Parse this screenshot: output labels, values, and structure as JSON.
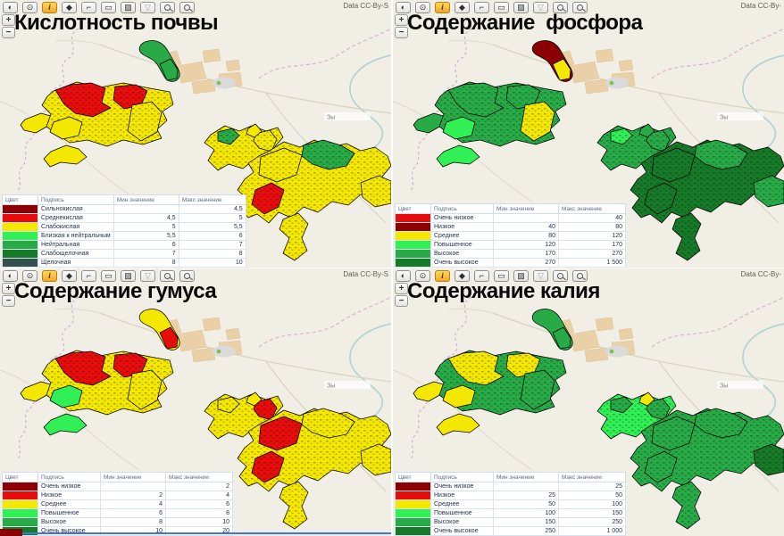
{
  "palette": {
    "yellow": "#f5e800",
    "red": "#e80d0d",
    "dark_red": "#8b0003",
    "bright_green": "#30f056",
    "green": "#28ab47",
    "dark_green": "#167a28",
    "slate_green": "#33514e"
  },
  "shared": {
    "zoom_in_label": "+",
    "zoom_out_label": "−",
    "map_label": "Зы",
    "legend_columns": [
      "Цвет",
      "Подпись",
      "Мин значение",
      "Макс значение"
    ],
    "toolbar": [
      {
        "name": "overview-globe-icon",
        "glyph": "◐"
      },
      {
        "name": "locate-icon",
        "glyph": "⊙"
      },
      {
        "name": "info-icon",
        "glyph": "i",
        "active": true
      },
      {
        "name": "swipe-compare-icon",
        "glyph": "◆"
      },
      {
        "name": "measure-length-icon",
        "glyph": "⌐"
      },
      {
        "name": "measure-area-icon",
        "glyph": "▭"
      },
      {
        "name": "annotate-icon",
        "glyph": "▨"
      },
      {
        "name": "filter-icon",
        "glyph": "▽",
        "muted": true
      },
      {
        "name": "zoom-previous-icon",
        "kind": "mag"
      },
      {
        "name": "zoom-next-icon",
        "kind": "mag"
      }
    ]
  },
  "panels": [
    {
      "title": "Кислотность почвы",
      "attribution": "Data CC-By-S",
      "legend_rows": [
        {
          "color": "dark_red",
          "label": "Сильнокислая",
          "min": "",
          "max": "4,5"
        },
        {
          "color": "red",
          "label": "Среднекислая",
          "min": "4,5",
          "max": "5"
        },
        {
          "color": "yellow",
          "label": "Слабокислая",
          "min": "5",
          "max": "5,5"
        },
        {
          "color": "bright_green",
          "label": "Близкая к нейтральным",
          "min": "5,5",
          "max": "6"
        },
        {
          "color": "green",
          "label": "Нейтральная",
          "min": "6",
          "max": "7"
        },
        {
          "color": "dark_green",
          "label": "Слабощелочная",
          "min": "7",
          "max": "8"
        },
        {
          "color": "slate_green",
          "label": "Щелочная",
          "min": "8",
          "max": "10"
        }
      ],
      "map_colors": {
        "west_arm": "yellow",
        "west_main": "yellow",
        "west_nw": "red",
        "west_ne": "red",
        "west_green": "yellow",
        "west_center": "yellow",
        "west_south": "yellow",
        "top_blob": "green",
        "top_blob_tip": "green",
        "mid_main": "yellow",
        "mid_p1": "green",
        "mid_p2": "yellow",
        "tiny_blob": "yellow",
        "east_main": "yellow",
        "east_nw": "yellow",
        "east_tail": "yellow",
        "east_top": "green",
        "east_wing": "yellow",
        "east_red": "red"
      }
    },
    {
      "title": "Содержание  фосфора",
      "attribution": "Data CC-By-",
      "legend_rows": [
        {
          "color": "red",
          "label": "Очень низкое",
          "min": "",
          "max": "40"
        },
        {
          "color": "dark_red",
          "label": "Низкое",
          "min": "40",
          "max": "80"
        },
        {
          "color": "yellow",
          "label": "Среднее",
          "min": "80",
          "max": "120"
        },
        {
          "color": "bright_green",
          "label": "Повышенное",
          "min": "120",
          "max": "170"
        },
        {
          "color": "green",
          "label": "Высокое",
          "min": "170",
          "max": "270"
        },
        {
          "color": "dark_green",
          "label": "Очень высокое",
          "min": "270",
          "max": "1 500"
        }
      ],
      "map_colors": {
        "west_arm": "green",
        "west_main": "green",
        "west_nw": "green",
        "west_ne": "green",
        "west_green": "bright_green",
        "west_center": "yellow",
        "west_south": "bright_green",
        "top_blob": "dark_red",
        "top_blob_tip": "yellow",
        "mid_main": "green",
        "mid_p1": "bright_green",
        "mid_p2": "green",
        "tiny_blob": "green",
        "east_main": "dark_green",
        "east_nw": "dark_green",
        "east_tail": "dark_green",
        "east_top": "green",
        "east_wing": "green",
        "east_red": "dark_green"
      }
    },
    {
      "title": "Содержание гумуса",
      "attribution": "Data CC-By-S",
      "legend_rows": [
        {
          "color": "dark_red",
          "label": "Очень низкое",
          "min": "",
          "max": "2"
        },
        {
          "color": "red",
          "label": "Низкое",
          "min": "2",
          "max": "4"
        },
        {
          "color": "yellow",
          "label": "Среднее",
          "min": "4",
          "max": "6"
        },
        {
          "color": "bright_green",
          "label": "Повышенное",
          "min": "6",
          "max": "8"
        },
        {
          "color": "green",
          "label": "Высокое",
          "min": "8",
          "max": "10"
        },
        {
          "color": "dark_green",
          "label": "Очень высокое",
          "min": "10",
          "max": "20"
        }
      ],
      "map_colors": {
        "west_arm": "yellow",
        "west_main": "yellow",
        "west_nw": "red",
        "west_ne": "red",
        "west_green": "bright_green",
        "west_center": "yellow",
        "west_south": "bright_green",
        "top_blob": "yellow",
        "top_blob_tip": "red",
        "mid_main": "yellow",
        "mid_p1": "yellow",
        "mid_p2": "red",
        "tiny_blob": "yellow",
        "east_main": "yellow",
        "east_nw": "red",
        "east_tail": "yellow",
        "east_top": "yellow",
        "east_wing": "yellow",
        "east_red": "red"
      }
    },
    {
      "title": "Содержание калия",
      "attribution": "Data CC-By-",
      "legend_rows": [
        {
          "color": "dark_red",
          "label": "Очень низкое",
          "min": "",
          "max": "25"
        },
        {
          "color": "red",
          "label": "Низкое",
          "min": "25",
          "max": "50"
        },
        {
          "color": "yellow",
          "label": "Среднее",
          "min": "50",
          "max": "100"
        },
        {
          "color": "bright_green",
          "label": "Повышенное",
          "min": "100",
          "max": "150"
        },
        {
          "color": "green",
          "label": "Высокое",
          "min": "150",
          "max": "250"
        },
        {
          "color": "dark_green",
          "label": "Очень высокое",
          "min": "250",
          "max": "1 000"
        }
      ],
      "map_colors": {
        "west_arm": "yellow",
        "west_main": "green",
        "west_nw": "yellow",
        "west_ne": "yellow",
        "west_green": "yellow",
        "west_center": "green",
        "west_south": "yellow",
        "top_blob": "green",
        "top_blob_tip": "green",
        "mid_main": "bright_green",
        "mid_p1": "green",
        "mid_p2": "green",
        "tiny_blob": "yellow",
        "east_main": "green",
        "east_nw": "green",
        "east_tail": "green",
        "east_top": "green",
        "east_wing": "dark_green",
        "east_red": "green"
      }
    }
  ]
}
